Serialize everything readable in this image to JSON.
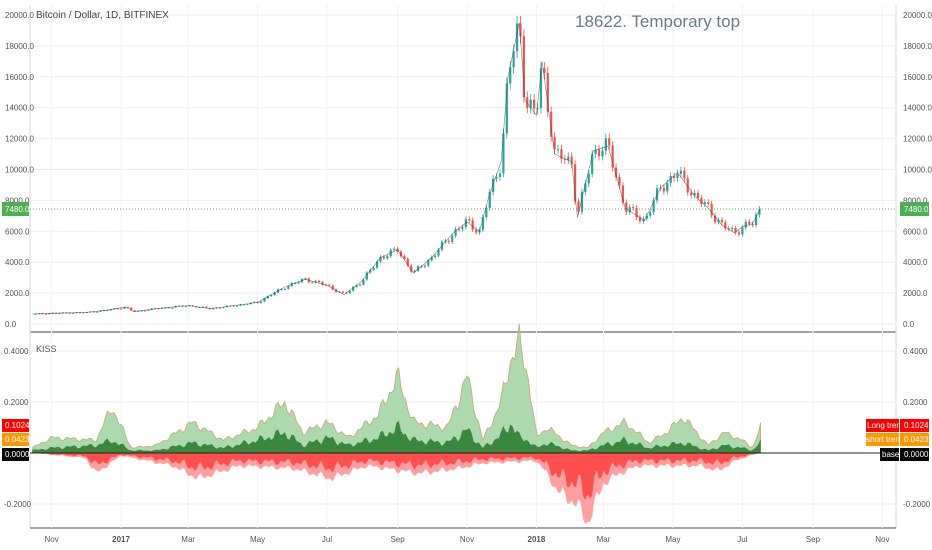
{
  "title": "Bitcoin / Dollar, 1D, BITFINEX",
  "annotation": "18622. Temporary top",
  "indicator_label": "KISS",
  "price_marker": "7480.0",
  "labels": {
    "long_trend": "Long trend",
    "long_value": "0.1024",
    "short_trend": "short trend",
    "short_value": "0.0423",
    "base": "base",
    "base_value": "0.0000"
  },
  "colors": {
    "up": "#26a69a",
    "down": "#ef5350",
    "long_trend": "#ff0000",
    "short_trend": "#ff9800",
    "base": "#000000",
    "green_light": "#a5d6a7",
    "green_dark": "#2e7d32",
    "red_light": "#ff9a9a",
    "red_dark": "#ff3333"
  },
  "chart_data": [
    {
      "type": "line",
      "name": "Bitcoin / Dollar, 1D, BITFINEX",
      "x_ticks": [
        "Nov",
        "2017",
        "Mar",
        "May",
        "Jul",
        "Sep",
        "Nov",
        "2018",
        "Mar",
        "May",
        "Jul",
        "Sep",
        "Nov"
      ],
      "y_ticks": [
        "0.0",
        "2000.0",
        "4000.0",
        "6000.0",
        "8000.0",
        "10000.0",
        "12000.0",
        "14000.0",
        "16000.0",
        "18000.0",
        "20000.0"
      ],
      "ylim": [
        0,
        20000
      ],
      "x": [
        "2016-10-15",
        "2016-11-01",
        "2016-12-01",
        "2016-12-20",
        "2017-01-05",
        "2017-01-12",
        "2017-02-01",
        "2017-03-01",
        "2017-03-20",
        "2017-04-01",
        "2017-05-01",
        "2017-05-25",
        "2017-06-12",
        "2017-07-01",
        "2017-07-16",
        "2017-08-01",
        "2017-08-17",
        "2017-09-01",
        "2017-09-15",
        "2017-10-01",
        "2017-10-20",
        "2017-11-01",
        "2017-11-12",
        "2017-11-20",
        "2017-12-01",
        "2017-12-07",
        "2017-12-17",
        "2017-12-22",
        "2018-01-01",
        "2018-01-06",
        "2018-01-17",
        "2018-02-01",
        "2018-02-06",
        "2018-02-20",
        "2018-03-05",
        "2018-03-20",
        "2018-04-06",
        "2018-04-20",
        "2018-05-05",
        "2018-05-20",
        "2018-06-01",
        "2018-06-13",
        "2018-06-24",
        "2018-07-01",
        "2018-07-10",
        "2018-07-17"
      ],
      "values": [
        640,
        700,
        750,
        900,
        1100,
        800,
        1000,
        1200,
        1000,
        1100,
        1400,
        2400,
        2900,
        2500,
        1900,
        2800,
        4300,
        4800,
        3300,
        4300,
        5900,
        6600,
        6000,
        8200,
        10500,
        16000,
        19500,
        14500,
        13500,
        17000,
        11000,
        10500,
        6900,
        11200,
        11500,
        7500,
        6700,
        8800,
        9800,
        8300,
        7500,
        6400,
        5900,
        6300,
        6500,
        7480
      ]
    },
    {
      "type": "area",
      "name": "KISS",
      "y_ticks": [
        "-0.2000",
        "0.0000",
        "0.2000",
        "0.4000"
      ],
      "ylim": [
        -0.3,
        0.45
      ],
      "series": [
        {
          "name": "Long trend",
          "x": [
            "2016-10-15",
            "2016-11-01",
            "2016-12-10",
            "2016-12-24",
            "2017-01-10",
            "2017-02-01",
            "2017-03-05",
            "2017-04-01",
            "2017-05-01",
            "2017-05-25",
            "2017-06-10",
            "2017-07-01",
            "2017-07-20",
            "2017-08-15",
            "2017-09-01",
            "2017-09-15",
            "2017-10-15",
            "2017-11-01",
            "2017-11-15",
            "2017-12-01",
            "2017-12-10",
            "2017-12-17",
            "2017-12-25",
            "2018-01-01",
            "2018-01-10",
            "2018-02-01",
            "2018-02-15",
            "2018-03-01",
            "2018-03-20",
            "2018-04-10",
            "2018-04-25",
            "2018-05-10",
            "2018-06-01",
            "2018-06-15",
            "2018-07-01",
            "2018-07-10",
            "2018-07-17"
          ],
          "values": [
            0.02,
            0.06,
            0.05,
            0.18,
            0.02,
            0.03,
            0.12,
            0.05,
            0.1,
            0.2,
            0.08,
            0.12,
            0.06,
            0.15,
            0.3,
            0.12,
            0.1,
            0.3,
            0.05,
            0.2,
            0.38,
            0.43,
            0.3,
            0.06,
            0.1,
            0.03,
            0.02,
            0.08,
            0.12,
            0.04,
            0.08,
            0.14,
            0.03,
            0.08,
            0.05,
            0.02,
            0.1024
          ]
        },
        {
          "name": "short trend",
          "x": [
            "2016-10-15",
            "2016-11-01",
            "2016-12-10",
            "2016-12-24",
            "2017-01-10",
            "2017-02-01",
            "2017-03-05",
            "2017-04-01",
            "2017-05-01",
            "2017-05-25",
            "2017-06-10",
            "2017-07-01",
            "2017-07-20",
            "2017-08-15",
            "2017-09-01",
            "2017-09-15",
            "2017-10-15",
            "2017-11-01",
            "2017-11-15",
            "2017-12-01",
            "2017-12-10",
            "2017-12-17",
            "2017-12-25",
            "2018-01-01",
            "2018-01-10",
            "2018-02-01",
            "2018-02-15",
            "2018-03-01",
            "2018-03-20",
            "2018-04-10",
            "2018-04-25",
            "2018-05-10",
            "2018-06-01",
            "2018-06-15",
            "2018-07-01",
            "2018-07-10",
            "2018-07-17"
          ],
          "values": [
            0.01,
            0.02,
            0.03,
            0.05,
            0.01,
            0.01,
            0.04,
            0.02,
            0.05,
            0.08,
            0.03,
            0.06,
            0.03,
            0.06,
            0.1,
            0.05,
            0.04,
            0.09,
            0.02,
            0.07,
            0.12,
            0.06,
            0.05,
            0.02,
            0.04,
            0.01,
            0.01,
            0.03,
            0.05,
            0.02,
            0.03,
            0.04,
            0.01,
            0.03,
            0.02,
            0.01,
            0.0423
          ]
        },
        {
          "name": "base",
          "x": [
            "2016-10-15",
            "2016-12-01",
            "2016-12-10",
            "2017-01-01",
            "2017-02-15",
            "2017-03-10",
            "2017-04-15",
            "2017-06-01",
            "2017-07-05",
            "2017-08-05",
            "2017-09-20",
            "2017-10-25",
            "2017-11-15",
            "2018-01-01",
            "2018-01-10",
            "2018-01-20",
            "2018-02-05",
            "2018-02-15",
            "2018-03-01",
            "2018-03-15",
            "2018-04-01",
            "2018-05-25",
            "2018-06-10",
            "2018-06-25",
            "2018-07-08",
            "2018-07-17"
          ],
          "values": [
            0,
            -0.02,
            -0.08,
            -0.01,
            -0.05,
            -0.1,
            -0.05,
            -0.06,
            -0.1,
            -0.05,
            -0.08,
            -0.06,
            -0.04,
            -0.03,
            -0.08,
            -0.15,
            -0.2,
            -0.27,
            -0.12,
            -0.08,
            -0.05,
            -0.05,
            -0.07,
            -0.03,
            -0.01,
            0
          ]
        }
      ]
    }
  ]
}
